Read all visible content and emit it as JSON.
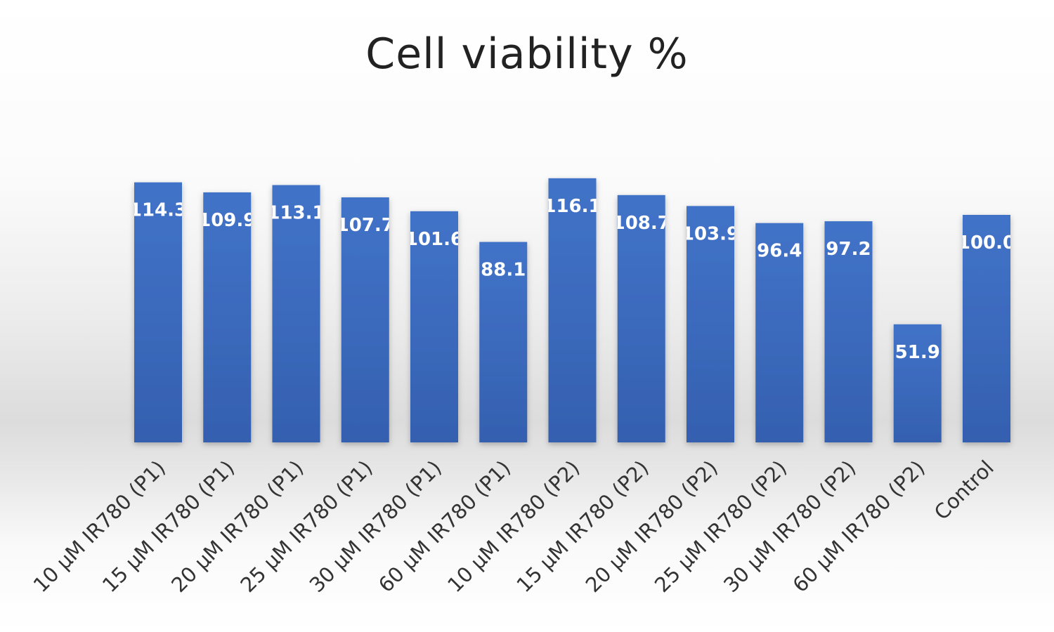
{
  "chart_data": {
    "type": "bar",
    "title": "Cell viability %",
    "categories": [
      "10 µM IR780 (P1)",
      "15 µM IR780 (P1)",
      "20 µM IR780 (P1)",
      "25 µM IR780 (P1)",
      "30 µM IR780 (P1)",
      "60 µM IR780 (P1)",
      "10 µM IR780 (P2)",
      "15 µM IR780 (P2)",
      "20 µM IR780 (P2)",
      "25 µM IR780 (P2)",
      "30 µM IR780 (P2)",
      "60 µM IR780 (P2)",
      "Control"
    ],
    "values": [
      114.3,
      109.9,
      113.1,
      107.7,
      101.6,
      88.1,
      116.1,
      108.7,
      103.9,
      96.4,
      97.2,
      51.9,
      100.0
    ],
    "data_labels": [
      "114.3",
      "109.9",
      "113.1",
      "107.7",
      "101.6",
      "88.1",
      "116.1",
      "108.7",
      "103.9",
      "96.4",
      "97.2",
      "51.9",
      "100.0"
    ],
    "xlabel": "",
    "ylabel": "",
    "ylim": [
      0,
      120
    ],
    "grid": false,
    "legend": "none",
    "bar_color": "#3a68be"
  }
}
